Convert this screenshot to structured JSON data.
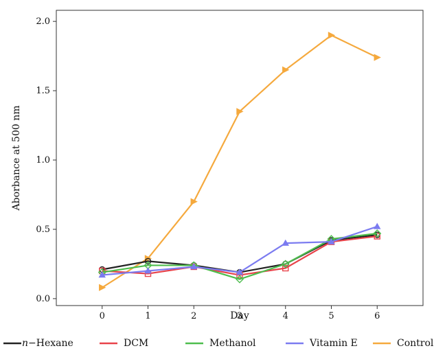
{
  "chart_data": {
    "type": "line",
    "title": "",
    "xlabel": "Day",
    "ylabel": "Aborbance at 500 nm",
    "x": [
      0,
      1,
      2,
      3,
      4,
      5,
      6
    ],
    "x_ticks": [
      "0",
      "1",
      "2",
      "3",
      "4",
      "5",
      "6"
    ],
    "xlim": [
      -1.0,
      7.0
    ],
    "y_ticks": [
      "0.0",
      "0.5",
      "1.0",
      "1.5",
      "2.0"
    ],
    "ylim": [
      -0.05,
      2.08
    ],
    "grid": false,
    "legend_position": "bottom",
    "series": [
      {
        "name": "n−Hexane",
        "name_prefix": "n",
        "name_suffix": "−Hexane",
        "color": "#222222",
        "marker": "circle",
        "values": [
          0.21,
          0.27,
          0.24,
          0.19,
          0.25,
          0.42,
          0.46
        ]
      },
      {
        "name": "DCM",
        "color": "#e8434a",
        "marker": "square",
        "values": [
          0.2,
          0.18,
          0.23,
          0.17,
          0.22,
          0.41,
          0.45
        ]
      },
      {
        "name": "Methanol",
        "color": "#4dbd4d",
        "marker": "diamond",
        "values": [
          0.19,
          0.24,
          0.24,
          0.14,
          0.25,
          0.43,
          0.47
        ]
      },
      {
        "name": "Vitamin E",
        "color": "#7b7bf0",
        "marker": "triangle",
        "values": [
          0.17,
          0.2,
          0.23,
          0.19,
          0.4,
          0.41,
          0.52
        ]
      },
      {
        "name": "Control",
        "color": "#f5a93d",
        "marker": "triangle-right",
        "values": [
          0.08,
          0.29,
          0.7,
          1.35,
          1.65,
          1.9,
          1.74
        ]
      }
    ]
  }
}
